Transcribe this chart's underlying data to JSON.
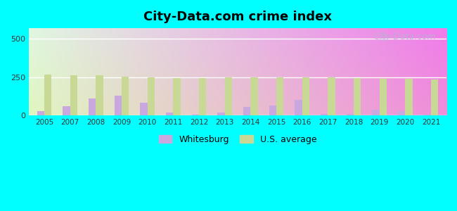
{
  "title": "City-Data.com crime index",
  "years": [
    2005,
    2007,
    2008,
    2009,
    2010,
    2011,
    2012,
    2013,
    2014,
    2015,
    2016,
    2017,
    2018,
    2019,
    2020,
    2021
  ],
  "whitesburg": [
    30,
    60,
    110,
    130,
    85,
    20,
    5,
    20,
    55,
    65,
    100,
    8,
    8,
    40,
    30,
    5
  ],
  "us_average": [
    268,
    265,
    265,
    253,
    247,
    244,
    244,
    250,
    247,
    247,
    247,
    247,
    244,
    242,
    239,
    236
  ],
  "whitesburg_color": "#c9a8e0",
  "us_avg_color": "#c8d895",
  "outer_bg": "#00ffff",
  "yticks": [
    0,
    250,
    500
  ],
  "ylim": [
    0,
    570
  ],
  "legend_whitesburg": "Whitesburg",
  "legend_us": "U.S. average",
  "watermark": "City-Data.com",
  "bar_width": 0.28
}
